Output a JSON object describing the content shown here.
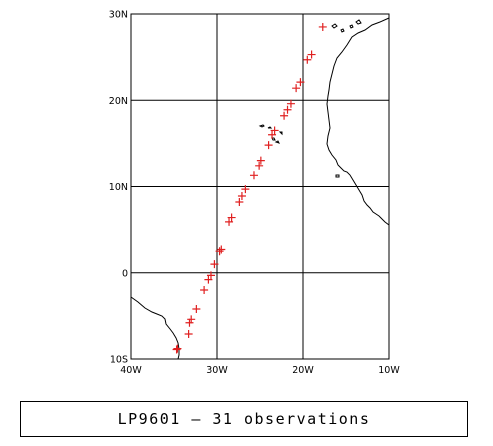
{
  "chart_data": {
    "type": "scatter",
    "marker": "plus",
    "marker_color": "#e02020",
    "grid": true,
    "xlim": [
      -40,
      -10
    ],
    "ylim": [
      -10,
      30
    ],
    "x_ticks": [
      -40,
      -30,
      -20,
      -10
    ],
    "y_ticks": [
      -10,
      0,
      10,
      20,
      30
    ],
    "x_tick_labels": [
      "40W",
      "30W",
      "20W",
      "10W"
    ],
    "y_tick_labels": [
      "10S",
      "0",
      "10N",
      "20N",
      "30N"
    ],
    "points": [
      {
        "lon": -17.7,
        "lat": 28.5
      },
      {
        "lon": -19.0,
        "lat": 25.3
      },
      {
        "lon": -19.5,
        "lat": 24.7
      },
      {
        "lon": -20.3,
        "lat": 22.1
      },
      {
        "lon": -20.8,
        "lat": 21.4
      },
      {
        "lon": -21.4,
        "lat": 19.6
      },
      {
        "lon": -21.8,
        "lat": 18.9
      },
      {
        "lon": -22.2,
        "lat": 18.2
      },
      {
        "lon": -23.3,
        "lat": 16.5
      },
      {
        "lon": -23.6,
        "lat": 16.0
      },
      {
        "lon": -24.0,
        "lat": 14.8
      },
      {
        "lon": -24.9,
        "lat": 13.0
      },
      {
        "lon": -25.1,
        "lat": 12.4
      },
      {
        "lon": -25.7,
        "lat": 11.3
      },
      {
        "lon": -26.7,
        "lat": 9.7
      },
      {
        "lon": -27.1,
        "lat": 8.9
      },
      {
        "lon": -27.4,
        "lat": 8.2
      },
      {
        "lon": -28.3,
        "lat": 6.4
      },
      {
        "lon": -28.6,
        "lat": 5.9
      },
      {
        "lon": -29.5,
        "lat": 2.7
      },
      {
        "lon": -29.7,
        "lat": 2.5
      },
      {
        "lon": -30.3,
        "lat": 1.0
      },
      {
        "lon": -30.7,
        "lat": -0.3
      },
      {
        "lon": -31.0,
        "lat": -0.8
      },
      {
        "lon": -31.5,
        "lat": -2.0
      },
      {
        "lon": -32.4,
        "lat": -4.2
      },
      {
        "lon": -33.0,
        "lat": -5.4
      },
      {
        "lon": -33.2,
        "lat": -5.8
      },
      {
        "lon": -33.3,
        "lat": -7.1
      },
      {
        "lon": -34.6,
        "lat": -8.8
      },
      {
        "lon": -34.7,
        "lat": -8.9
      }
    ]
  },
  "caption": "LP9601 — 31 observations",
  "colors": {
    "marker": "#e02020",
    "coastline": "#000000",
    "grid": "#000000",
    "background": "#ffffff"
  }
}
